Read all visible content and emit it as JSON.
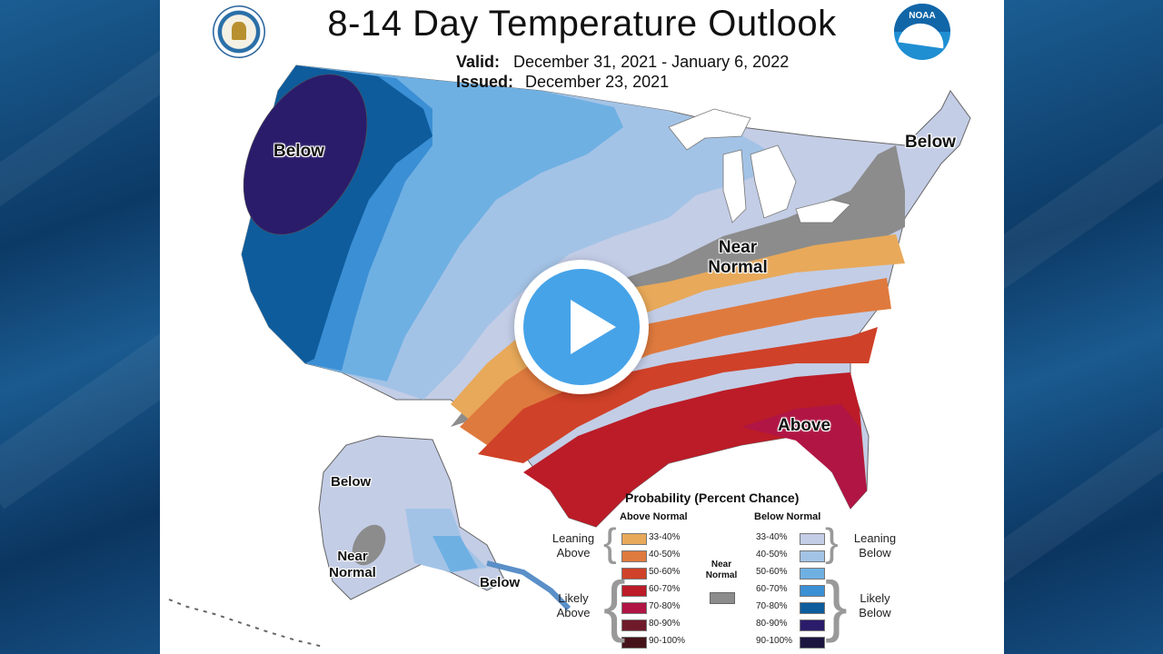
{
  "header": {
    "title": "8-14 Day Temperature Outlook",
    "valid_label": "Valid:",
    "valid_value": "December 31, 2021 - January 6, 2022",
    "issued_label": "Issued:",
    "issued_value": "December 23, 2021"
  },
  "logos": {
    "left": "department-of-commerce-seal",
    "right_text": "NOAA"
  },
  "map_labels": {
    "below_nw": "Below",
    "below_ne": "Below",
    "near_normal": "Near Normal",
    "above_se": "Above",
    "ak_below_1": "Below",
    "ak_near_normal": "Near Normal",
    "ak_below_2": "Below"
  },
  "legend": {
    "title": "Probability (Percent Chance)",
    "above_header": "Above Normal",
    "below_header": "Below Normal",
    "near_normal": "Near Normal",
    "leaning_above": "Leaning Above",
    "likely_above": "Likely Above",
    "leaning_below": "Leaning Below",
    "likely_below": "Likely Below",
    "above": [
      {
        "range": "33-40%",
        "color": "#e8a95a"
      },
      {
        "range": "40-50%",
        "color": "#df7a3e"
      },
      {
        "range": "50-60%",
        "color": "#cf4128"
      },
      {
        "range": "60-70%",
        "color": "#bb1c27"
      },
      {
        "range": "70-80%",
        "color": "#b01544"
      },
      {
        "range": "80-90%",
        "color": "#6f1a2a"
      },
      {
        "range": "90-100%",
        "color": "#461219"
      }
    ],
    "below": [
      {
        "range": "33-40%",
        "color": "#c3cde6"
      },
      {
        "range": "40-50%",
        "color": "#a3c3e6"
      },
      {
        "range": "50-60%",
        "color": "#6fb0e3"
      },
      {
        "range": "60-70%",
        "color": "#3b8fd4"
      },
      {
        "range": "70-80%",
        "color": "#0e5c9c"
      },
      {
        "range": "80-90%",
        "color": "#2b1c6b"
      },
      {
        "range": "90-100%",
        "color": "#1b1540"
      }
    ],
    "near_normal_color": "#8c8c8c"
  },
  "video": {
    "play_icon": "play-icon"
  }
}
